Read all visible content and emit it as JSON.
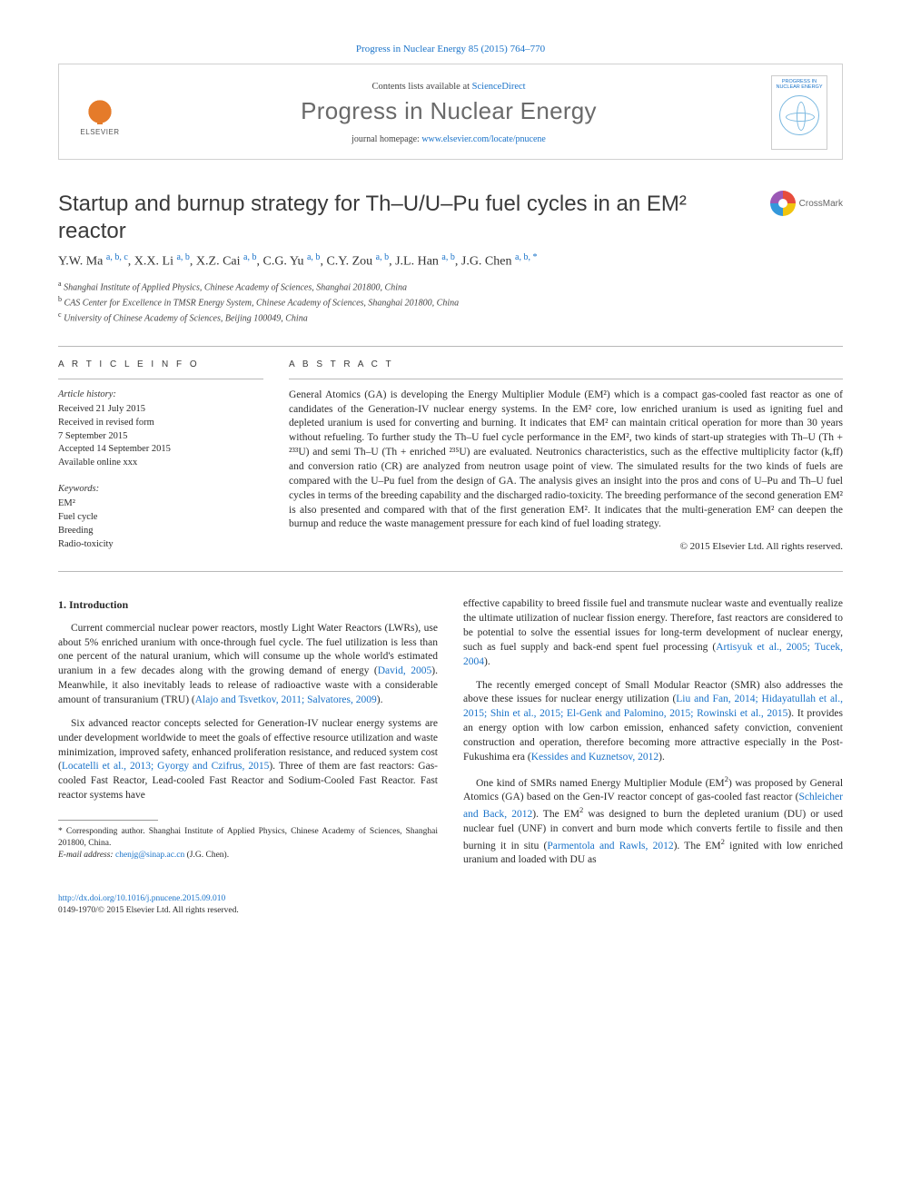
{
  "colors": {
    "link": "#1a73c9",
    "text": "#2a2a2a",
    "journal_name": "#6a6a6a",
    "rule": "#b8b8b8",
    "elsevier_orange": "#e57b2a"
  },
  "cite_line": {
    "prefix": "",
    "text": "Progress in Nuclear Energy 85 (2015) 764–770"
  },
  "header": {
    "contents_prefix": "Contents lists available at ",
    "contents_link": "ScienceDirect",
    "journal_name": "Progress in Nuclear Energy",
    "homepage_prefix": "journal homepage: ",
    "homepage_url": "www.elsevier.com/locate/pnucene",
    "elsevier_label": "ELSEVIER",
    "thumb_title": "PROGRESS IN NUCLEAR ENERGY"
  },
  "title": "Startup and burnup strategy for Th–U/U–Pu fuel cycles in an EM² reactor",
  "crossmark_label": "CrossMark",
  "authors_html": "Y.W. Ma <sup>a, b, c</sup>, X.X. Li <sup>a, b</sup>, X.Z. Cai <sup>a, b</sup>, C.G. Yu <sup>a, b</sup>, C.Y. Zou <sup>a, b</sup>, J.L. Han <sup>a, b</sup>, J.G. Chen <sup>a, b, *</sup>",
  "affiliations": [
    {
      "tag": "a",
      "text": "Shanghai Institute of Applied Physics, Chinese Academy of Sciences, Shanghai 201800, China"
    },
    {
      "tag": "b",
      "text": "CAS Center for Excellence in TMSR Energy System, Chinese Academy of Sciences, Shanghai 201800, China"
    },
    {
      "tag": "c",
      "text": "University of Chinese Academy of Sciences, Beijing 100049, China"
    }
  ],
  "article_info": {
    "head": "A R T I C L E   I N F O",
    "history_head": "Article history:",
    "history": [
      "Received 21 July 2015",
      "Received in revised form",
      "7 September 2015",
      "Accepted 14 September 2015",
      "Available online xxx"
    ],
    "keywords_head": "Keywords:",
    "keywords": [
      "EM²",
      "Fuel cycle",
      "Breeding",
      "Radio-toxicity"
    ]
  },
  "abstract": {
    "head": "A B S T R A C T",
    "text": "General Atomics (GA) is developing the Energy Multiplier Module (EM²) which is a compact gas-cooled fast reactor as one of candidates of the Generation-IV nuclear energy systems. In the EM² core, low enriched uranium is used as igniting fuel and depleted uranium is used for converting and burning. It indicates that EM² can maintain critical operation for more than 30 years without refueling. To further study the Th–U fuel cycle performance in the EM², two kinds of start-up strategies with Th–U (Th + ²³³U) and semi Th–U (Th + enriched ²³⁵U) are evaluated. Neutronics characteristics, such as the effective multiplicity factor (kₑff) and conversion ratio (CR) are analyzed from neutron usage point of view. The simulated results for the two kinds of fuels are compared with the U–Pu fuel from the design of GA. The analysis gives an insight into the pros and cons of U–Pu and Th–U fuel cycles in terms of the breeding capability and the discharged radio-toxicity. The breeding performance of the second generation EM² is also presented and compared with that of the first generation EM². It indicates that the multi-generation EM² can deepen the burnup and reduce the waste management pressure for each kind of fuel loading strategy.",
    "copyright": "© 2015 Elsevier Ltd. All rights reserved."
  },
  "body": {
    "section_heading": "1. Introduction",
    "left_paragraphs": [
      "Current commercial nuclear power reactors, mostly Light Water Reactors (LWRs), use about 5% enriched uranium with once-through fuel cycle. The fuel utilization is less than one percent of the natural uranium, which will consume up the whole world's estimated uranium in a few decades along with the growing demand of energy (<span class=\"ref-link\">David, 2005</span>). Meanwhile, it also inevitably leads to release of radioactive waste with a considerable amount of transuranium (TRU) (<span class=\"ref-link\">Alajo and Tsvetkov, 2011; Salvatores, 2009</span>).",
      "Six advanced reactor concepts selected for Generation-IV nuclear energy systems are under development worldwide to meet the goals of effective resource utilization and waste minimization, improved safety, enhanced proliferation resistance, and reduced system cost (<span class=\"ref-link\">Locatelli et al., 2013; Gyorgy and Czifrus, 2015</span>). Three of them are fast reactors: Gas-cooled Fast Reactor, Lead-cooled Fast Reactor and Sodium-Cooled Fast Reactor. Fast reactor systems have"
    ],
    "right_paragraphs": [
      "effective capability to breed fissile fuel and transmute nuclear waste and eventually realize the ultimate utilization of nuclear fission energy. Therefore, fast reactors are considered to be potential to solve the essential issues for long-term development of nuclear energy, such as fuel supply and back-end spent fuel processing (<span class=\"ref-link\">Artisyuk et al., 2005; Tucek, 2004</span>).",
      "The recently emerged concept of Small Modular Reactor (SMR) also addresses the above these issues for nuclear energy utilization (<span class=\"ref-link\">Liu and Fan, 2014; Hidayatullah et al., 2015; Shin et al., 2015; El-Genk and Palomino, 2015; Rowinski et al., 2015</span>). It provides an energy option with low carbon emission, enhanced safety conviction, convenient construction and operation, therefore becoming more attractive especially in the Post-Fukushima era (<span class=\"ref-link\">Kessides and Kuznetsov, 2012</span>).",
      "One kind of SMRs named Energy Multiplier Module (EM<sup class=\"sup2\">2</sup>) was proposed by General Atomics (GA) based on the Gen-IV reactor concept of gas-cooled fast reactor (<span class=\"ref-link\">Schleicher and Back, 2012</span>). The EM<sup class=\"sup2\">2</sup> was designed to burn the depleted uranium (DU) or used nuclear fuel (UNF) in convert and burn mode which converts fertile to fissile and then burning it in situ (<span class=\"ref-link\">Parmentola and Rawls, 2012</span>). The EM<sup class=\"sup2\">2</sup> ignited with low enriched uranium and loaded with DU as"
    ]
  },
  "footnote": {
    "corr": "* Corresponding author. Shanghai Institute of Applied Physics, Chinese Academy of Sciences, Shanghai 201800, China.",
    "email_label": "E-mail address:",
    "email": "chenjg@sinap.ac.cn",
    "email_person": "(J.G. Chen)."
  },
  "footer": {
    "doi": "http://dx.doi.org/10.1016/j.pnucene.2015.09.010",
    "copyright": "0149-1970/© 2015 Elsevier Ltd. All rights reserved."
  }
}
